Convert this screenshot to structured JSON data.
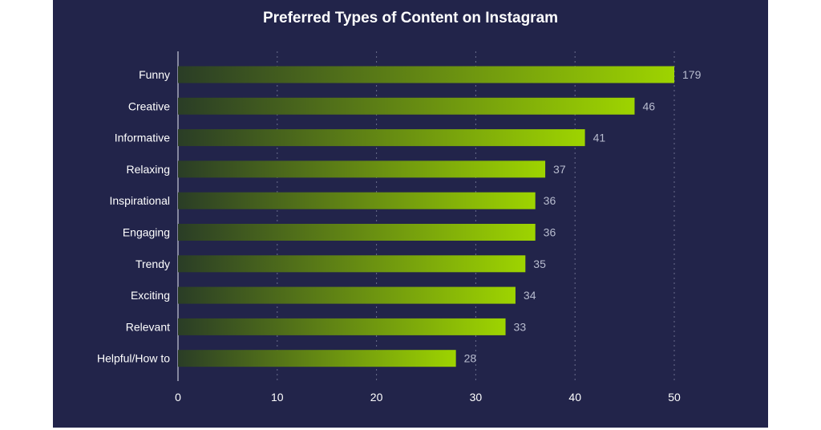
{
  "colors": {
    "background": "#22244a",
    "bar_start": "#2a3d26",
    "bar_end": "#9ed400",
    "grid": "#6a6d8c"
  },
  "chart_data": {
    "type": "bar",
    "orientation": "horizontal",
    "title": "Preferred Types of Content on Instagram",
    "categories": [
      "Funny",
      "Creative",
      "Informative",
      "Relaxing",
      "Inspirational",
      "Engaging",
      "Trendy",
      "Exciting",
      "Relevant",
      "Helpful/How to"
    ],
    "values": [
      179,
      46,
      41,
      37,
      36,
      36,
      35,
      34,
      33,
      28
    ],
    "data_labels": [
      "179",
      "46",
      "41",
      "37",
      "36",
      "36",
      "35",
      "34",
      "33",
      "28"
    ],
    "xlim": [
      0,
      50
    ],
    "xticks": [
      0,
      10,
      20,
      30,
      40,
      50
    ],
    "xlabel": "",
    "ylabel": "",
    "grid": "vertical dashed",
    "legend": "none",
    "notes": "Funny bar truncated at axis max 50"
  }
}
